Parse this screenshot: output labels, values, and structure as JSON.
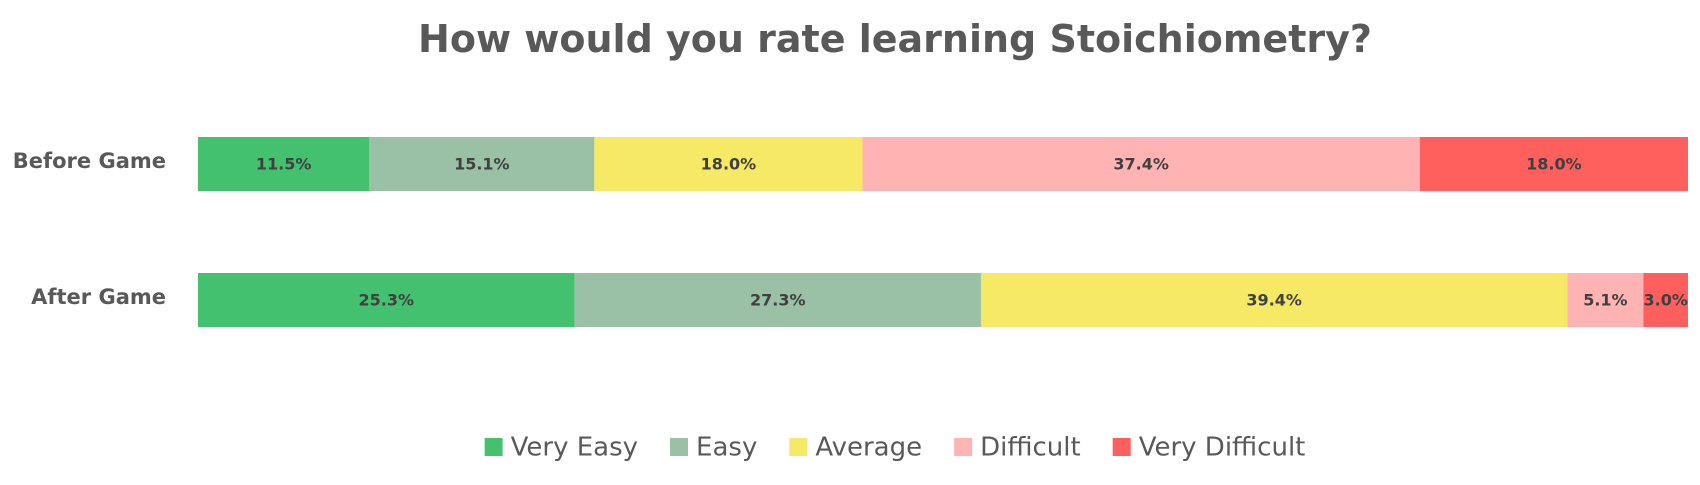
{
  "chart_data": {
    "type": "bar",
    "orientation": "horizontal",
    "stacked": true,
    "normalized_100_percent": true,
    "title": "How would you rate learning Stoichiometry?",
    "xlabel": "",
    "ylabel": "",
    "xlim": [
      0,
      100
    ],
    "grid": false,
    "legend_position": "bottom",
    "categories": [
      "Before Game",
      "After Game"
    ],
    "series": [
      {
        "name": "Very Easy",
        "color": "#44C16E",
        "values": [
          11.5,
          25.3
        ],
        "labels": [
          "11.5%",
          "25.3%"
        ]
      },
      {
        "name": "Easy",
        "color": "#9AC1A6",
        "values": [
          15.1,
          27.3
        ],
        "labels": [
          "15.1%",
          "27.3%"
        ]
      },
      {
        "name": "Average",
        "color": "#F5E966",
        "values": [
          18.0,
          39.4
        ],
        "labels": [
          "18.0%",
          "39.4%"
        ]
      },
      {
        "name": "Difficult",
        "color": "#FFB3B2",
        "values": [
          37.4,
          5.1
        ],
        "labels": [
          "37.4%",
          "5.1%"
        ]
      },
      {
        "name": "Very Difficult",
        "color": "#FF5F5D",
        "values": [
          18.0,
          3.0
        ],
        "labels": [
          "18.0%",
          "3.0%"
        ]
      }
    ]
  }
}
